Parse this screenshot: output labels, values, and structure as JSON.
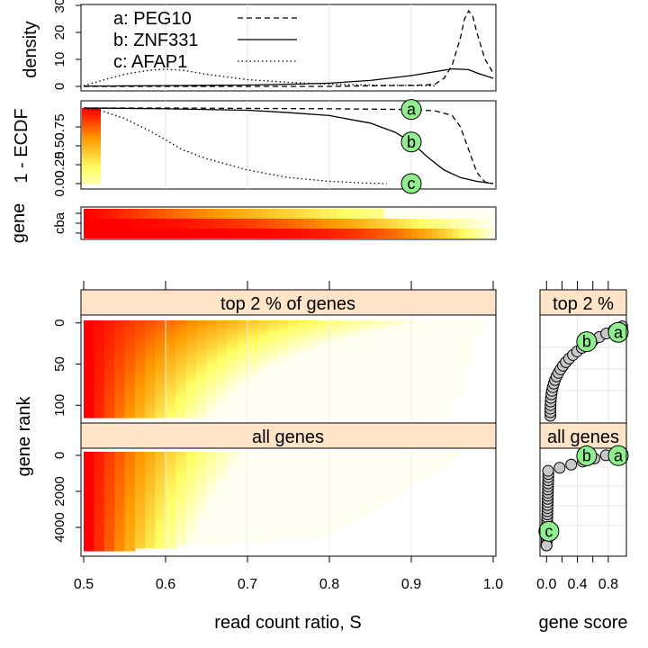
{
  "colors": {
    "heat_high": "#ff0000",
    "heat_mid": "#ff9900",
    "heat_low": "#ffff66",
    "heat_min": "#fffff0",
    "strip_bg": "#ffe4c8",
    "highlight_point": "#90ee90",
    "other_point": "#c8c8c8",
    "grid": "#e6e6e6"
  },
  "chart_data": [
    {
      "panel": "density",
      "type": "line",
      "ylabel": "density",
      "xlim": [
        0.5,
        1.0
      ],
      "ylim": [
        0,
        30
      ],
      "y_ticks": [
        "0",
        "10",
        "20",
        "30"
      ],
      "legend_position": "top-left",
      "series": [
        {
          "name": "a: PEG10",
          "line_style": "dashed",
          "x": [
            0.5,
            0.6,
            0.7,
            0.8,
            0.85,
            0.9,
            0.92,
            0.93,
            0.94,
            0.95,
            0.96,
            0.965,
            0.97,
            0.975,
            0.98,
            0.99,
            1.0
          ],
          "y": [
            0,
            0,
            0,
            0,
            0.2,
            0.4,
            0.6,
            1,
            3,
            8,
            18,
            25,
            28,
            26,
            20,
            10,
            5
          ]
        },
        {
          "name": "b: ZNF331",
          "line_style": "solid",
          "x": [
            0.5,
            0.55,
            0.6,
            0.65,
            0.7,
            0.75,
            0.8,
            0.85,
            0.9,
            0.92,
            0.95,
            0.97,
            0.98,
            1.0
          ],
          "y": [
            0.1,
            0.2,
            0.3,
            0.4,
            0.5,
            0.8,
            1.2,
            2.2,
            4,
            5,
            6.5,
            6.2,
            5,
            3
          ]
        },
        {
          "name": "c: AFAP1",
          "line_style": "dotted",
          "x": [
            0.5,
            0.52,
            0.55,
            0.58,
            0.6,
            0.62,
            0.65,
            0.7,
            0.75,
            0.8,
            0.85,
            0.9,
            0.93
          ],
          "y": [
            0.3,
            2,
            4.5,
            6,
            6.4,
            6,
            4.5,
            2.5,
            1.5,
            0.8,
            0.5,
            0.3,
            0.2
          ]
        }
      ]
    },
    {
      "panel": "ecdf",
      "type": "line",
      "ylabel": "1 - ECDF",
      "xlim": [
        0.5,
        1.0
      ],
      "ylim": [
        0,
        1
      ],
      "y_ticks": [
        "0.00",
        "0.25",
        "0.50",
        "0.75"
      ],
      "marker_x": 0.9,
      "series": [
        {
          "name": "a",
          "line_style": "dashed",
          "x": [
            0.5,
            0.6,
            0.7,
            0.8,
            0.9,
            0.93,
            0.95,
            0.96,
            0.97,
            0.98,
            0.99,
            1.0
          ],
          "y": [
            1,
            1,
            0.995,
            0.99,
            0.98,
            0.96,
            0.9,
            0.75,
            0.45,
            0.15,
            0.02,
            0
          ],
          "marker_y": 0.98
        },
        {
          "name": "b",
          "line_style": "solid",
          "x": [
            0.5,
            0.6,
            0.7,
            0.75,
            0.8,
            0.85,
            0.88,
            0.9,
            0.92,
            0.94,
            0.96,
            0.98,
            1.0
          ],
          "y": [
            1,
            0.99,
            0.97,
            0.94,
            0.9,
            0.8,
            0.68,
            0.55,
            0.35,
            0.18,
            0.08,
            0.03,
            0
          ],
          "marker_y": 0.55
        },
        {
          "name": "c",
          "line_style": "dotted",
          "x": [
            0.5,
            0.52,
            0.55,
            0.58,
            0.6,
            0.62,
            0.65,
            0.7,
            0.75,
            0.8,
            0.85,
            0.87
          ],
          "y": [
            1,
            0.97,
            0.86,
            0.7,
            0.58,
            0.45,
            0.33,
            0.18,
            0.08,
            0.03,
            0.005,
            0
          ],
          "marker_y": 0.0
        }
      ]
    },
    {
      "panel": "gene_heatmap",
      "type": "heatmap",
      "ylabel": "gene",
      "rows": [
        "c",
        "b",
        "a"
      ],
      "row_tick_label": "cba",
      "xlim": [
        0.5,
        1.0
      ]
    },
    {
      "panel": "rank_heatmap",
      "type": "heatmap",
      "xlabel": "read count ratio, S",
      "ylabel": "gene rank",
      "xlim": [
        0.5,
        1.0
      ],
      "x_ticks": [
        "0.5",
        "0.6",
        "0.7",
        "0.8",
        "0.9",
        "1.0"
      ],
      "facets": [
        {
          "strip": "top 2 % of genes",
          "ylim": [
            115,
            -3
          ],
          "y_ticks": [
            "0",
            "50",
            "100"
          ]
        },
        {
          "strip": "all genes",
          "ylim": [
            5300,
            -200
          ],
          "y_ticks": [
            "0",
            "2000",
            "4000"
          ]
        }
      ]
    },
    {
      "panel": "gene_score",
      "type": "scatter",
      "xlabel": "gene score",
      "xlim": [
        -0.05,
        1.0
      ],
      "x_ticks": [
        "0.0",
        "0.4",
        "0.8"
      ],
      "facets": [
        {
          "strip": "top 2 %",
          "highlights": [
            {
              "label": "b",
              "score": 0.52,
              "rank": 25
            },
            {
              "label": "a",
              "score": 0.93,
              "rank": 14
            }
          ]
        },
        {
          "strip": "all genes",
          "highlights": [
            {
              "label": "b",
              "score": 0.52,
              "rank": 25
            },
            {
              "label": "a",
              "score": 0.93,
              "rank": 14
            },
            {
              "label": "c",
              "score": 0.03,
              "rank": 4300
            }
          ]
        }
      ]
    }
  ]
}
